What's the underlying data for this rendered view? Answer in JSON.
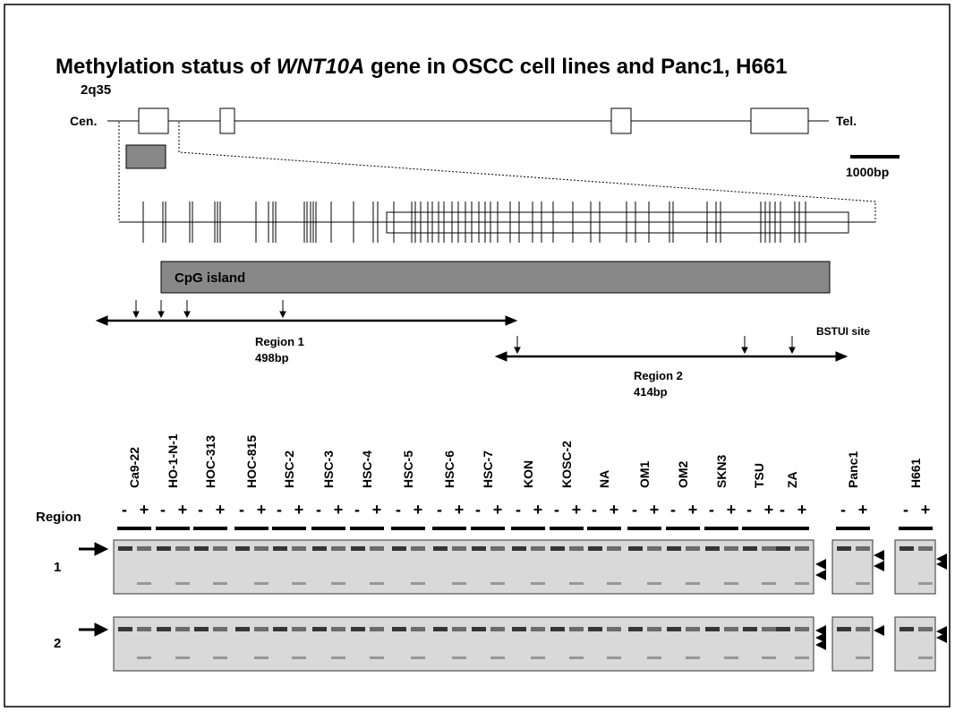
{
  "header": {
    "title_prefix": "Methylation status of ",
    "title_gene": "WNT10A",
    "title_suffix": " gene in OSCC cell lines and Panc1, H661"
  },
  "map": {
    "locus": "2q35",
    "centromere": "Cen.",
    "telomere": "Tel.",
    "scale": "1000bp",
    "cpg_island": "CpG island",
    "region1": {
      "name": "Region 1",
      "size": "498bp"
    },
    "region2": {
      "name": "Region 2",
      "size": "414bp"
    },
    "site": "BSTUI site"
  },
  "gel": {
    "region_label": "Region",
    "treatments": [
      "-",
      "+"
    ],
    "regions": [
      "1",
      "2"
    ],
    "lanes": [
      "Ca9-22",
      "HO-1-N-1",
      "HOC-313",
      "HOC-815",
      "HSC-2",
      "HSC-3",
      "HSC-4",
      "HSC-5",
      "HSC-6",
      "HSC-7",
      "KON",
      "KOSC-2",
      "NA",
      "OM1",
      "OM2",
      "SKN3",
      "TSU",
      "ZA",
      "Panc1",
      "H661"
    ]
  }
}
